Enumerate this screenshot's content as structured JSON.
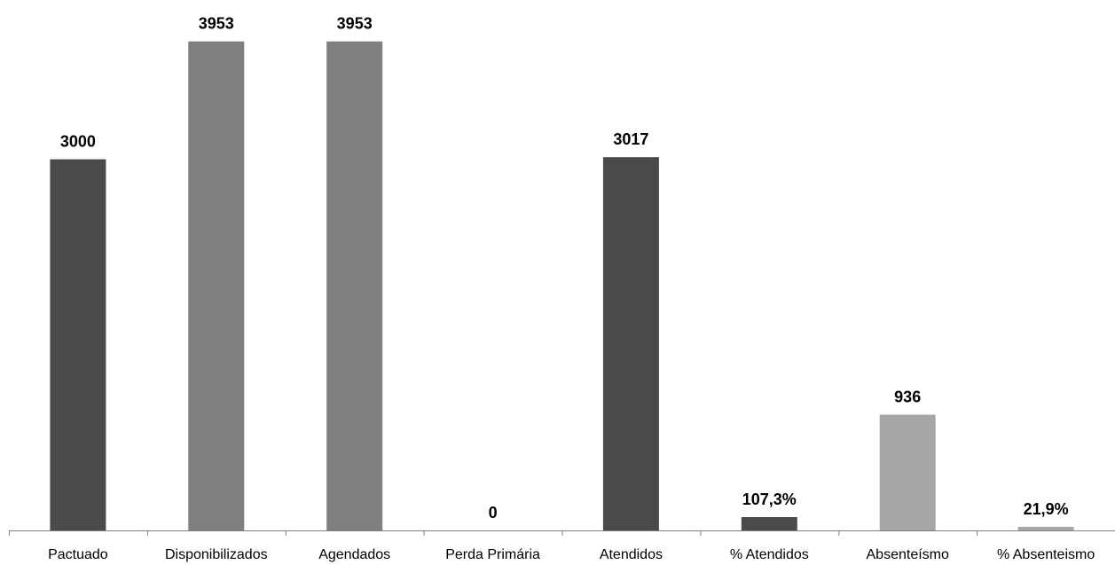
{
  "chart_data": {
    "type": "bar",
    "title": "",
    "xlabel": "",
    "ylabel": "",
    "categories": [
      "Pactuado",
      "Disponibilizados",
      "Agendados",
      "Perda Primária",
      "Atendidos",
      "% Atendidos",
      "Absenteísmo",
      "% Absenteismo"
    ],
    "values": [
      3000,
      3953,
      3953,
      0,
      3017,
      107.3,
      936,
      21.9
    ],
    "data_labels": [
      "3000",
      "3953",
      "3953",
      "0",
      "3017",
      "107,3%",
      "936",
      "21,9%"
    ],
    "colors": [
      "#4a4a4a",
      "#7f7f7f",
      "#7f7f7f",
      "#7f7f7f",
      "#4a4a4a",
      "#4a4a4a",
      "#a6a6a6",
      "#a6a6a6"
    ],
    "ylim": [
      0,
      4130
    ],
    "grid": false,
    "legend": "none"
  }
}
